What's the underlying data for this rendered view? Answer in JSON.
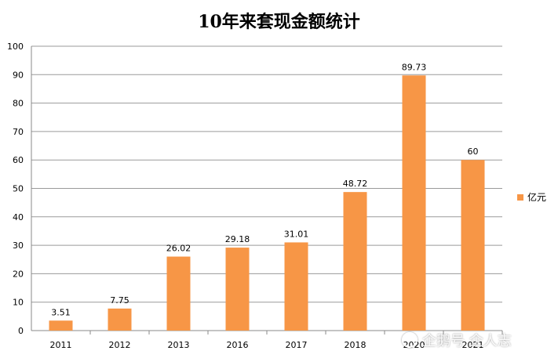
{
  "chart_data": {
    "type": "bar",
    "title": "10年来套现金额统计",
    "categories": [
      "2011",
      "2012",
      "2013",
      "2016",
      "2017",
      "2018",
      "2020",
      "2021"
    ],
    "series": [
      {
        "name": "亿元",
        "values": [
          3.51,
          7.75,
          26.02,
          29.18,
          31.01,
          48.72,
          89.73,
          60
        ]
      }
    ],
    "data_labels": [
      "3.51",
      "7.75",
      "26.02",
      "29.18",
      "31.01",
      "48.72",
      "89.73",
      "60"
    ],
    "ylim": [
      0,
      100
    ],
    "yticks": [
      0,
      10,
      20,
      30,
      40,
      50,
      60,
      70,
      80,
      90,
      100
    ],
    "grid": true,
    "legend": "right",
    "bar_color": "#f79646"
  },
  "watermark": {
    "text": "企鹅号 企人志",
    "icon": "penguin-logo-icon"
  }
}
